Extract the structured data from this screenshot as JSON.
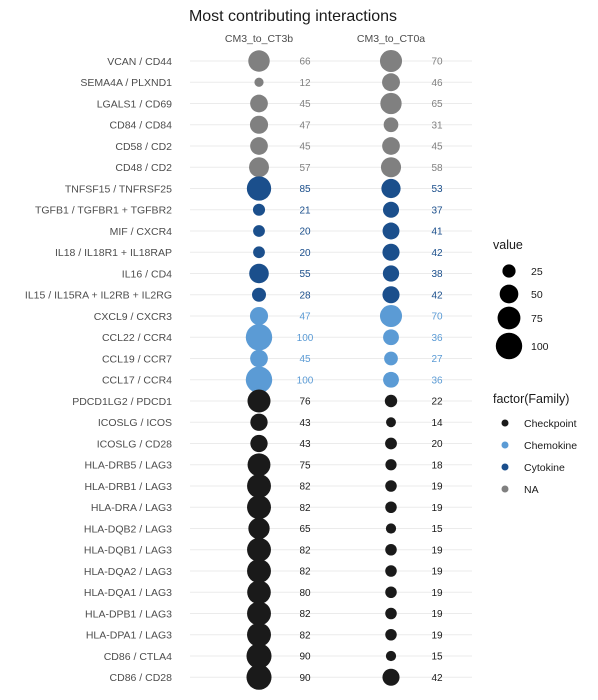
{
  "chart_data": {
    "type": "scatter",
    "title": "Most contributing interactions",
    "columns": [
      "CM3_to_CT3b",
      "CM3_to_CT0a"
    ],
    "rows": [
      {
        "label": "VCAN / CD44",
        "family": "NA",
        "values": [
          66,
          70
        ]
      },
      {
        "label": "SEMA4A / PLXND1",
        "family": "NA",
        "values": [
          12,
          46
        ]
      },
      {
        "label": "LGALS1 / CD69",
        "family": "NA",
        "values": [
          45,
          65
        ]
      },
      {
        "label": "CD84 / CD84",
        "family": "NA",
        "values": [
          47,
          31
        ]
      },
      {
        "label": "CD58 / CD2",
        "family": "NA",
        "values": [
          45,
          45
        ]
      },
      {
        "label": "CD48 / CD2",
        "family": "NA",
        "values": [
          57,
          58
        ]
      },
      {
        "label": "TNFSF15 / TNFRSF25",
        "family": "Cytokine",
        "values": [
          85,
          53
        ]
      },
      {
        "label": "TGFB1 / TGFBR1 + TGFBR2",
        "family": "Cytokine",
        "values": [
          21,
          37
        ]
      },
      {
        "label": "MIF / CXCR4",
        "family": "Cytokine",
        "values": [
          20,
          41
        ]
      },
      {
        "label": "IL18 / IL18R1 + IL18RAP",
        "family": "Cytokine",
        "values": [
          20,
          42
        ]
      },
      {
        "label": "IL16 / CD4",
        "family": "Cytokine",
        "values": [
          55,
          38
        ]
      },
      {
        "label": "IL15 / IL15RA + IL2RB + IL2RG",
        "family": "Cytokine",
        "values": [
          28,
          42
        ]
      },
      {
        "label": "CXCL9 / CXCR3",
        "family": "Chemokine",
        "values": [
          47,
          70
        ]
      },
      {
        "label": "CCL22 / CCR4",
        "family": "Chemokine",
        "values": [
          100,
          36
        ]
      },
      {
        "label": "CCL19 / CCR7",
        "family": "Chemokine",
        "values": [
          45,
          27
        ]
      },
      {
        "label": "CCL17 / CCR4",
        "family": "Chemokine",
        "values": [
          100,
          36
        ]
      },
      {
        "label": "PDCD1LG2 / PDCD1",
        "family": "Checkpoint",
        "values": [
          76,
          22
        ]
      },
      {
        "label": "ICOSLG / ICOS",
        "family": "Checkpoint",
        "values": [
          43,
          14
        ]
      },
      {
        "label": "ICOSLG / CD28",
        "family": "Checkpoint",
        "values": [
          43,
          20
        ]
      },
      {
        "label": "HLA-DRB5 / LAG3",
        "family": "Checkpoint",
        "values": [
          75,
          18
        ]
      },
      {
        "label": "HLA-DRB1 / LAG3",
        "family": "Checkpoint",
        "values": [
          82,
          19
        ]
      },
      {
        "label": "HLA-DRA / LAG3",
        "family": "Checkpoint",
        "values": [
          82,
          19
        ]
      },
      {
        "label": "HLA-DQB2 / LAG3",
        "family": "Checkpoint",
        "values": [
          65,
          15
        ]
      },
      {
        "label": "HLA-DQB1 / LAG3",
        "family": "Checkpoint",
        "values": [
          82,
          19
        ]
      },
      {
        "label": "HLA-DQA2 / LAG3",
        "family": "Checkpoint",
        "values": [
          82,
          19
        ]
      },
      {
        "label": "HLA-DQA1 / LAG3",
        "family": "Checkpoint",
        "values": [
          80,
          19
        ]
      },
      {
        "label": "HLA-DPB1 / LAG3",
        "family": "Checkpoint",
        "values": [
          82,
          19
        ]
      },
      {
        "label": "HLA-DPA1 / LAG3",
        "family": "Checkpoint",
        "values": [
          82,
          19
        ]
      },
      {
        "label": "CD86 / CTLA4",
        "family": "Checkpoint",
        "values": [
          90,
          15
        ]
      },
      {
        "label": "CD86 / CD28",
        "family": "Checkpoint",
        "values": [
          90,
          42
        ]
      }
    ],
    "size_legend": {
      "title": "value",
      "breaks": [
        25,
        50,
        75,
        100
      ]
    },
    "color_legend": {
      "title": "factor(Family)",
      "entries": [
        {
          "name": "Checkpoint",
          "color": "#1a1a1a"
        },
        {
          "name": "Chemokine",
          "color": "#5b9bd5"
        },
        {
          "name": "Cytokine",
          "color": "#1b4f8c"
        },
        {
          "name": "NA",
          "color": "#808080"
        }
      ]
    },
    "grid": true,
    "legend_position": "right"
  }
}
